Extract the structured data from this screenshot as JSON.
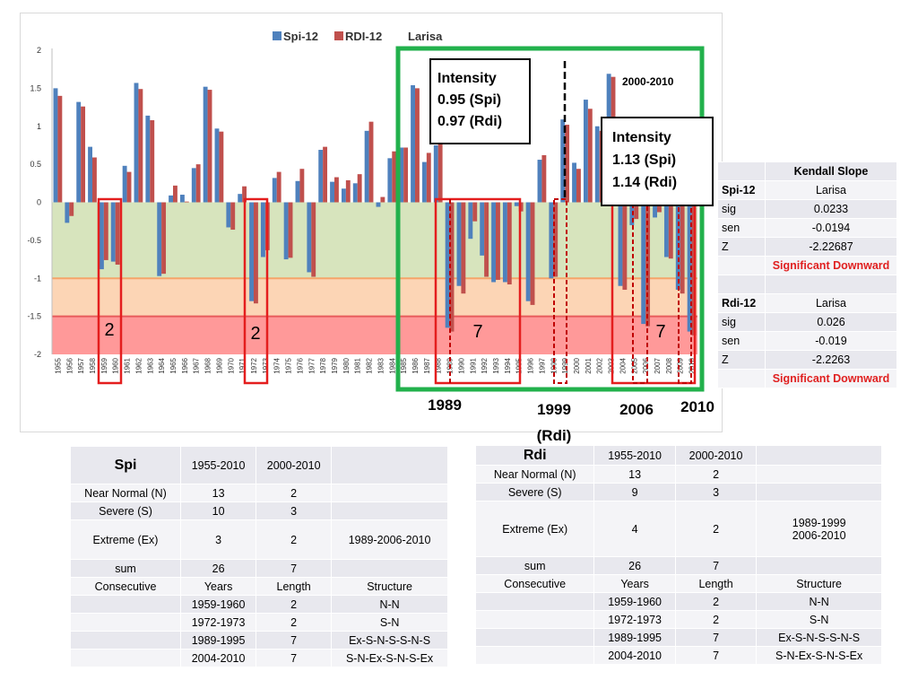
{
  "chart_data": {
    "type": "bar",
    "title": "Larisa",
    "legend": [
      {
        "name": "Spi-12",
        "color": "#4f81bd"
      },
      {
        "name": "RDI-12",
        "color": "#c0504d"
      }
    ],
    "legend_position": "top-center",
    "ylim": [
      -2,
      2
    ],
    "yticks": [
      "2",
      "1.5",
      "1",
      "0.5",
      "0",
      "-0.5",
      "-1",
      "-1.5",
      "-2"
    ],
    "categories": [
      "1955",
      "1956",
      "1957",
      "1958",
      "1959",
      "1960",
      "1961",
      "1962",
      "1963",
      "1964",
      "1965",
      "1966",
      "1967",
      "1968",
      "1969",
      "1970",
      "1971",
      "1972",
      "1973",
      "1974",
      "1975",
      "1976",
      "1977",
      "1978",
      "1979",
      "1980",
      "1981",
      "1982",
      "1983",
      "1984",
      "1985",
      "1986",
      "1987",
      "1988",
      "1989",
      "1990",
      "1991",
      "1992",
      "1993",
      "1994",
      "1995",
      "1996",
      "1997",
      "1998",
      "1999",
      "2000",
      "2001",
      "2002",
      "2003",
      "2004",
      "2005",
      "2006",
      "2007",
      "2008",
      "2009",
      "2010"
    ],
    "series": [
      {
        "name": "Spi-12",
        "values": [
          1.5,
          -0.27,
          1.32,
          0.73,
          -0.88,
          -0.78,
          0.48,
          1.57,
          1.14,
          -0.97,
          0.09,
          0.1,
          0.45,
          1.52,
          0.97,
          -0.33,
          0.11,
          -1.3,
          -0.72,
          0.32,
          -0.75,
          0.28,
          -0.92,
          0.69,
          0.27,
          0.18,
          0.25,
          0.94,
          -0.06,
          0.58,
          0.72,
          1.54,
          0.53,
          0.75,
          -1.65,
          -1.1,
          -0.48,
          -0.7,
          -1.05,
          -1.05,
          -0.05,
          -1.3,
          0.56,
          -1.0,
          1.09,
          0.52,
          1.35,
          1.0,
          1.69,
          -1.1,
          -0.3,
          -1.6,
          -0.2,
          -0.72,
          -1.15,
          -1.7
        ]
      },
      {
        "name": "RDI-12",
        "values": [
          1.4,
          -0.18,
          1.26,
          0.59,
          -0.76,
          -0.82,
          0.4,
          1.49,
          1.08,
          -0.94,
          0.22,
          0.01,
          0.5,
          1.48,
          0.93,
          -0.36,
          0.21,
          -1.33,
          -0.63,
          0.4,
          -0.73,
          0.44,
          -0.98,
          0.73,
          0.33,
          0.29,
          0.37,
          1.06,
          0.07,
          0.67,
          0.72,
          1.5,
          0.65,
          0.78,
          -1.7,
          -1.2,
          -0.25,
          -0.98,
          -1.02,
          -1.08,
          -0.12,
          -1.35,
          0.62,
          -0.98,
          1.02,
          0.44,
          1.23,
          0.94,
          1.65,
          -1.15,
          -0.22,
          -1.63,
          -0.13,
          -0.74,
          -1.2,
          -1.75
        ]
      }
    ],
    "bands": [
      {
        "from": 0,
        "to": -1,
        "color": "#d7e4bd"
      },
      {
        "from": -1,
        "to": -1.5,
        "color": "#fcd5b5"
      },
      {
        "from": -1.5,
        "to": -2,
        "color": "#ff9999"
      }
    ],
    "annotations": {
      "period_label": "2000-2010",
      "intensity1": [
        "Intensity",
        "0.95 (Spi)",
        "0.97 (Rdi)"
      ],
      "intensity2": [
        "Intensity",
        "1.13 (Spi)",
        "1.14 (Rdi)"
      ],
      "counts": [
        "2",
        "2",
        "7",
        "7"
      ],
      "year_marks": [
        "1989",
        "1999",
        "(Rdi)",
        "2006",
        "2010"
      ]
    }
  },
  "kendall": {
    "header": "Kendall Slope",
    "rows": [
      {
        "label": "Spi-12",
        "value": "Larisa",
        "bold": true
      },
      {
        "label": "sig",
        "value": "0.0233"
      },
      {
        "label": "sen",
        "value": "-0.0194"
      },
      {
        "label": "Z",
        "value": "-2.22687"
      },
      {
        "label": "",
        "value": "Significant Downward",
        "red": true
      },
      {
        "label": "",
        "value": ""
      },
      {
        "label": "Rdi-12",
        "value": "Larisa",
        "bold": true
      },
      {
        "label": "sig",
        "value": "0.026"
      },
      {
        "label": "sen",
        "value": "-0.019"
      },
      {
        "label": "Z",
        "value": "-2.2263"
      },
      {
        "label": "",
        "value": "Significant Downward",
        "red": true
      }
    ]
  },
  "spi_table": {
    "title": "Spi",
    "h1": "1955-2010",
    "h2": "2000-2010",
    "r1": [
      "Near Normal (N)",
      "13",
      "2"
    ],
    "r2": [
      "Severe (S)",
      "10",
      "3"
    ],
    "r3": [
      "Extreme (Ex)",
      "3",
      "2",
      "1989-2006-2010"
    ],
    "r4": [
      "sum",
      "26",
      "7"
    ],
    "r5": [
      "Consecutive",
      "Years",
      "Length",
      "Structure"
    ],
    "c1": [
      "1959-1960",
      "2",
      "N-N"
    ],
    "c2": [
      "1972-1973",
      "2",
      "S-N"
    ],
    "c3": [
      "1989-1995",
      "7",
      "Ex-S-N-S-S-N-S"
    ],
    "c4": [
      "2004-2010",
      "7",
      "S-N-Ex-S-N-S-Ex"
    ]
  },
  "rdi_table": {
    "title": "Rdi",
    "h1": "1955-2010",
    "h2": "2000-2010",
    "r1": [
      "Near Normal (N)",
      "13",
      "2"
    ],
    "r2": [
      "Severe (S)",
      "9",
      "3"
    ],
    "r3": [
      "Extreme (Ex)",
      "4",
      "2",
      "1989-1999",
      "2006-2010"
    ],
    "r4": [
      "sum",
      "26",
      "7"
    ],
    "r5": [
      "Consecutive",
      "Years",
      "Length",
      "Structure"
    ],
    "c1": [
      "1959-1960",
      "2",
      "N-N"
    ],
    "c2": [
      "1972-1973",
      "2",
      "S-N"
    ],
    "c3": [
      "1989-1995",
      "7",
      "Ex-S-N-S-S-N-S"
    ],
    "c4": [
      "2004-2010",
      "7",
      "S-N-Ex-S-N-S-Ex"
    ]
  }
}
